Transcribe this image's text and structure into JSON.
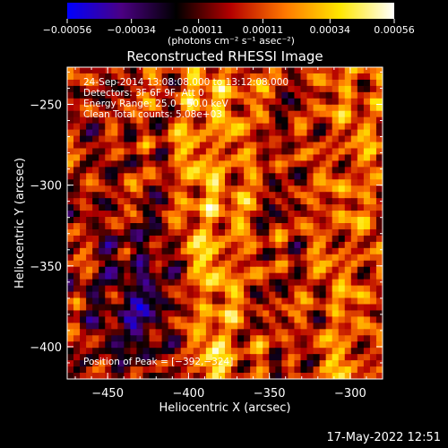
{
  "chart_data": {
    "type": "heatmap",
    "title": "Reconstructed RHESSI Image",
    "xlabel": "Heliocentric X (arcsec)",
    "ylabel": "Heliocentric Y (arcsec)",
    "xlim": [
      -475,
      -280
    ],
    "ylim": [
      -420,
      -227
    ],
    "x_ticks": [
      -450,
      -400,
      -350,
      -300
    ],
    "x_tick_labels": [
      "−450",
      "−400",
      "−350",
      "−300"
    ],
    "y_ticks": [
      -400,
      -350,
      -300,
      -250
    ],
    "y_tick_labels": [
      "−400",
      "−350",
      "−300",
      "−250"
    ],
    "colorbar": {
      "range": [
        -0.00056,
        0.00056
      ],
      "ticks": [
        -0.00056,
        -0.00034,
        -0.00011,
        0.00011,
        0.00034,
        0.00056
      ],
      "tick_labels": [
        "−0.00056",
        "−0.00034",
        "−0.00011",
        "0.00011",
        "0.00034",
        "0.00056"
      ],
      "units": "(photons cm⁻² s⁻¹ asec⁻²)",
      "colors": [
        "#0000ff",
        "#4b0082",
        "#000000",
        "#b40000",
        "#ff7800",
        "#ffe600",
        "#ffffff"
      ]
    },
    "annotations": [
      "24‑Sep‑2014 13:08:08.000 to 13:12:08.000",
      "Detectors: 3F 6F 9F, Att 0",
      "Energy Range: 25.0 – 50.0 keV",
      "Clean     Total counts: 5.08e+03"
    ],
    "peak_label": "Position of Peak = [−392,−324]",
    "peak": [
      -392,
      -324
    ]
  },
  "timestamp": "17‑May‑2022 12:51"
}
